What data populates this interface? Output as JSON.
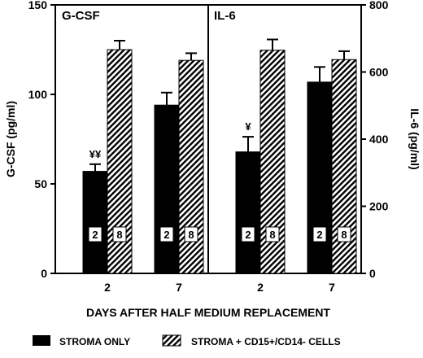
{
  "chart_data": [
    {
      "type": "bar",
      "title": "G-CSF",
      "ylabel": "G-CSF (pg/ml)",
      "ylim": [
        0,
        150
      ],
      "yticks": [
        "0",
        "50",
        "100",
        "150"
      ],
      "categories": [
        "2",
        "7"
      ],
      "series": [
        {
          "name": "STROMA ONLY",
          "values": [
            57,
            94
          ],
          "errors": [
            4,
            7
          ]
        },
        {
          "name": "STROMA + CD15+/CD14- CELLS",
          "values": [
            125,
            119
          ],
          "errors": [
            5,
            4
          ]
        }
      ],
      "annotations": [
        {
          "category": "2",
          "series": "STROMA ONLY",
          "text": "¥¥"
        }
      ]
    },
    {
      "type": "bar",
      "title": "IL-6",
      "ylabel": "IL-6 (pg/ml)",
      "ylim": [
        0,
        800
      ],
      "yticks": [
        "0",
        "200",
        "400",
        "600",
        "800"
      ],
      "categories": [
        "2",
        "7"
      ],
      "series": [
        {
          "name": "STROMA ONLY",
          "values": [
            362,
            570
          ],
          "errors": [
            45,
            45
          ]
        },
        {
          "name": "STROMA + CD15+/CD14- CELLS",
          "values": [
            665,
            637
          ],
          "errors": [
            32,
            25
          ]
        }
      ],
      "annotations": [
        {
          "category": "2",
          "series": "STROMA ONLY",
          "text": "¥"
        }
      ]
    }
  ],
  "xlabel": "DAYS AFTER HALF MEDIUM REPLACEMENT",
  "bar_badges": [
    "2",
    "8"
  ],
  "legend": [
    {
      "label": "STROMA ONLY",
      "fill": "solid"
    },
    {
      "label": "STROMA + CD15+/CD14- CELLS",
      "fill": "hatched"
    }
  ],
  "colors": {
    "solid": "#000000",
    "hatch": "#000000",
    "background": "#ffffff"
  }
}
